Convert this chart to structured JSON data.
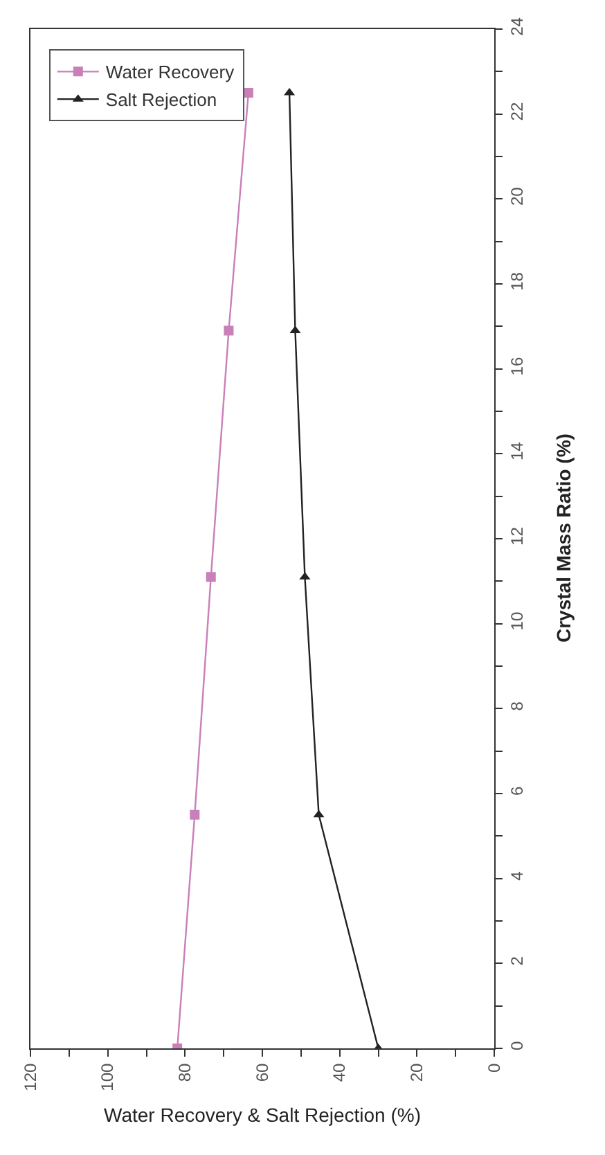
{
  "chart_data": {
    "type": "line",
    "xlabel": "Water Recovery & Salt Rejection (%)",
    "ylabel": "Crystal Mass Ratio (%)",
    "series": [
      {
        "name": "Water Recovery",
        "color": "#c97fb8",
        "x": [
          82,
          77.5,
          73.3,
          68.7,
          63.6
        ],
        "values": [
          0,
          5.5,
          11.1,
          16.9,
          22.5
        ],
        "marker": "square"
      },
      {
        "name": "Salt Rejection",
        "color": "#222222",
        "x": [
          30,
          45.4,
          49,
          51.5,
          53
        ],
        "values": [
          0,
          5.5,
          11.1,
          16.9,
          22.5
        ],
        "marker": "triangle"
      }
    ],
    "ylim": [
      0,
      24
    ],
    "yticks": [
      0,
      {
        "value": 1,
        "label": null
      },
      2,
      {
        "value": 3,
        "label": null
      },
      4,
      {
        "value": 5,
        "label": null
      },
      6,
      {
        "value": 7,
        "label": null
      },
      8,
      {
        "value": 9,
        "label": null
      },
      10,
      {
        "value": 11,
        "label": null
      },
      12,
      {
        "value": 13,
        "label": null
      },
      14,
      {
        "value": 15,
        "label": null
      },
      16,
      {
        "value": 17,
        "label": null
      },
      18,
      {
        "value": 19,
        "label": null
      },
      20,
      {
        "value": 21,
        "label": null
      },
      22,
      {
        "value": 23,
        "label": null
      },
      24
    ],
    "xlim": [
      120,
      0
    ],
    "xticks": [
      0,
      {
        "value": 10,
        "label": null
      },
      20,
      {
        "value": 30,
        "label": null
      },
      40,
      {
        "value": 50,
        "label": null
      },
      60,
      {
        "value": 70,
        "label": null
      },
      80,
      {
        "value": 90,
        "label": null
      },
      100,
      {
        "value": 110,
        "label": null
      },
      120
    ],
    "legend": "top left",
    "line_style": "solid"
  }
}
